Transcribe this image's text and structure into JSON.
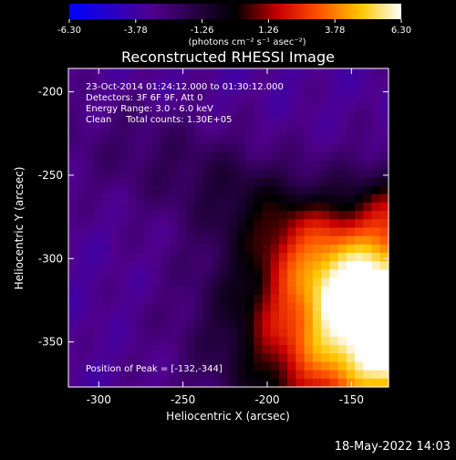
{
  "chart_data": {
    "type": "heatmap",
    "title": "Reconstructed RHESSI Image",
    "xlabel": "Heliocentric X (arcsec)",
    "ylabel": "Heliocentric Y (arcsec)",
    "xlim": [
      -318,
      -128
    ],
    "ylim": [
      -377,
      -186
    ],
    "xticks": [
      "-300",
      "-250",
      "-200",
      "-150"
    ],
    "xtick_values": [
      -300,
      -250,
      -200,
      -150
    ],
    "yticks": [
      "-200",
      "-250",
      "-300",
      "-350"
    ],
    "ytick_values": [
      -200,
      -250,
      -300,
      -350
    ],
    "colorbar": {
      "label": "(photons cm⁻² s⁻¹ asec⁻²)",
      "range": [
        -6.3,
        6.3
      ],
      "ticks": [
        "-6.30",
        "-3.78",
        "-1.26",
        "1.26",
        "3.78",
        "6.30"
      ],
      "tick_values": [
        -6.3,
        -3.78,
        -1.26,
        1.26,
        3.78,
        6.3
      ]
    },
    "annotations": [
      "23-Oct-2014 01:24:12.000 to 01:30:12.000",
      "Detectors: 3F 6F 9F, Att 0",
      "Energy Range: 3.0 - 6.0 keV",
      "Clean     Total counts: 1.30E+05"
    ],
    "peak_label": "Position of Peak = [-132,-344]",
    "peak": [
      -132,
      -344
    ],
    "colors": {
      "negative_end": "#0000ff",
      "zero": "#000000",
      "positive_mid": "#ff2000",
      "positive_end": "#ffffff"
    }
  },
  "footer": {
    "timestamp": "18-May-2022 14:03"
  }
}
